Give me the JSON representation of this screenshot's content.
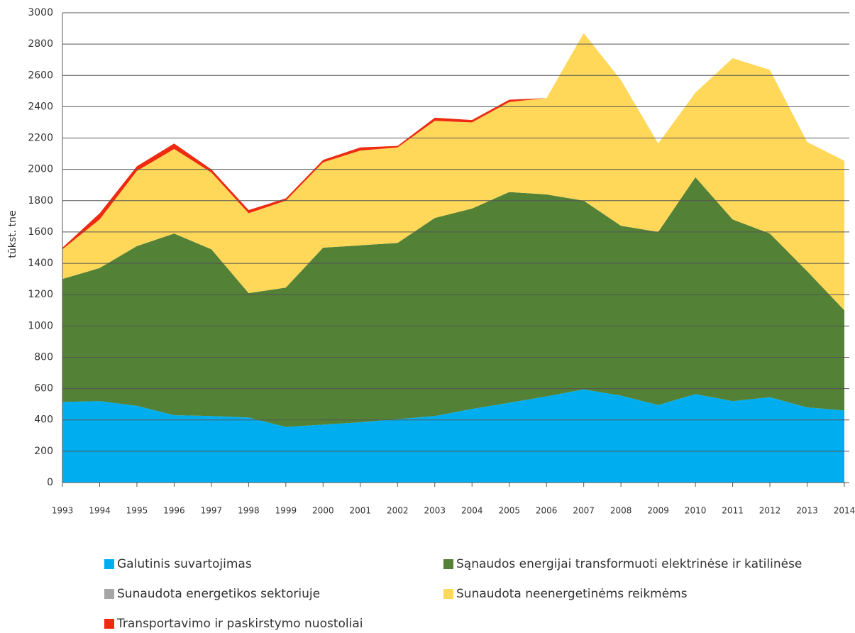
{
  "chart_data": {
    "type": "stacked_area",
    "y_label": "tūkst. tne",
    "categories": [
      "1993",
      "1994",
      "1995",
      "1996",
      "1997",
      "1998",
      "1999",
      "2000",
      "2001",
      "2002",
      "2003",
      "2004",
      "2005",
      "2006",
      "2007",
      "2008",
      "2009",
      "2010",
      "2011",
      "2012",
      "2013",
      "2014"
    ],
    "series": [
      {
        "name": "Galutinis suvartojimas",
        "color": "#00aeef",
        "values": [
          515,
          520,
          490,
          430,
          425,
          415,
          355,
          370,
          385,
          405,
          425,
          470,
          510,
          550,
          595,
          555,
          495,
          565,
          520,
          545,
          480,
          460
        ]
      },
      {
        "name": "Sąnaudos energijai transformuoti elektrinėse ir katilinėse",
        "color": "#538135",
        "values": [
          785,
          850,
          1020,
          1160,
          1065,
          795,
          890,
          1130,
          1130,
          1125,
          1265,
          1280,
          1345,
          1290,
          1205,
          1085,
          1105,
          1385,
          1160,
          1045,
          870,
          640
        ]
      },
      {
        "name": "Sunaudota energetikos sektoriuje",
        "color": "#a6a6a6",
        "values": [
          0,
          0,
          0,
          0,
          0,
          0,
          0,
          0,
          0,
          0,
          0,
          0,
          0,
          0,
          0,
          0,
          0,
          0,
          0,
          0,
          0,
          0
        ]
      },
      {
        "name": "Sunaudota neenergetinėms reikmėms",
        "color": "#ffd85a",
        "values": [
          190,
          310,
          480,
          540,
          490,
          510,
          555,
          545,
          605,
          610,
          620,
          550,
          575,
          615,
          1070,
          930,
          565,
          540,
          1030,
          1045,
          825,
          955
        ]
      },
      {
        "name": "Transportavimo ir paskirstymo nuostoliai",
        "color": "#ee2a10",
        "values": [
          10,
          40,
          30,
          35,
          20,
          20,
          15,
          15,
          20,
          10,
          20,
          15,
          15,
          0,
          0,
          0,
          0,
          0,
          0,
          0,
          0,
          0
        ]
      }
    ],
    "ylim": [
      0,
      3000
    ],
    "yticks": [
      0,
      200,
      400,
      600,
      800,
      1000,
      1200,
      1400,
      1600,
      1800,
      2000,
      2200,
      2400,
      2600,
      2800,
      3000
    ],
    "grid": true
  }
}
